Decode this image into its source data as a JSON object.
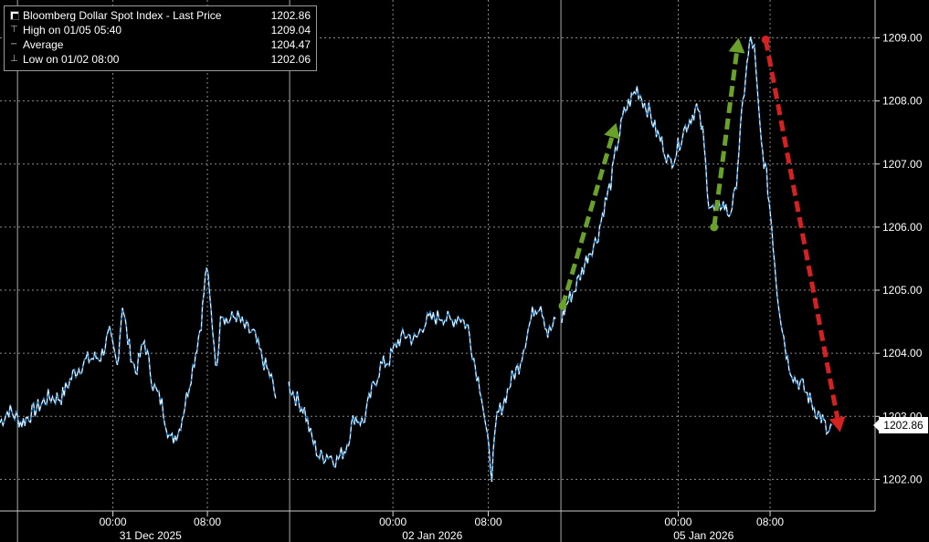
{
  "legend": {
    "title": "Bloomberg Dollar Spot Index - Last Price",
    "last_price": "1202.86",
    "rows": [
      {
        "label": "High on 01/05 05:40",
        "value": "1209.04",
        "icon": "high-marker-icon"
      },
      {
        "label": "Average",
        "value": "1204.47",
        "icon": "average-marker-icon"
      },
      {
        "label": "Low on 01/02 08:00",
        "value": "1202.06",
        "icon": "low-marker-icon"
      }
    ]
  },
  "last_price_tag": "1202.86",
  "chart_data": {
    "type": "line",
    "title": "Bloomberg Dollar Spot Index - Last Price",
    "ylim": [
      1201.5,
      1209.6
    ],
    "y_ticks": [
      {
        "value": 1202,
        "label": "1202.00"
      },
      {
        "value": 1203,
        "label": "1203.00"
      },
      {
        "value": 1204,
        "label": "1204.00"
      },
      {
        "value": 1205,
        "label": "1205.00"
      },
      {
        "value": 1206,
        "label": "1206.00"
      },
      {
        "value": 1207,
        "label": "1207.00"
      },
      {
        "value": 1208,
        "label": "1208.00"
      },
      {
        "value": 1209,
        "label": "1209.00"
      }
    ],
    "x_tick_labels": [
      "00:00",
      "08:00",
      "00:00",
      "08:00",
      "00:00",
      "08:00"
    ],
    "date_labels": [
      "31 Dec 2025",
      "02 Jan 2026",
      "05 Jan 2026"
    ],
    "x_domain": [
      0,
      100
    ],
    "x_tick_positions": [
      12.9,
      23.7,
      44.9,
      55.8,
      77.5,
      88.0
    ],
    "session_separators": [
      2.0,
      33.1,
      64.1
    ],
    "date_label_positions": [
      17.2,
      49.4,
      80.4
    ],
    "colors": {
      "line": "#ffffff",
      "line_accent": "#2a8fd6",
      "grid": "#8c8c8c",
      "up_arrow": "#6aa12a",
      "down_arrow": "#d42222"
    },
    "series": [
      {
        "points": [
          [
            0.0,
            1202.9
          ],
          [
            1.0,
            1203.1
          ],
          [
            2.5,
            1202.9
          ],
          [
            4.0,
            1203.1
          ],
          [
            5.5,
            1203.3
          ],
          [
            7.0,
            1203.3
          ],
          [
            8.5,
            1203.7
          ],
          [
            10.0,
            1203.9
          ],
          [
            11.5,
            1203.95
          ],
          [
            12.5,
            1204.3
          ],
          [
            13.4,
            1203.8
          ],
          [
            14.0,
            1204.8
          ],
          [
            14.6,
            1204.2
          ],
          [
            15.5,
            1203.7
          ],
          [
            16.5,
            1204.2
          ],
          [
            17.5,
            1203.5
          ],
          [
            18.5,
            1203.2
          ],
          [
            19.5,
            1202.6
          ],
          [
            20.5,
            1202.8
          ],
          [
            21.3,
            1203.3
          ],
          [
            22.2,
            1203.9
          ],
          [
            23.0,
            1204.5
          ],
          [
            23.6,
            1205.4
          ],
          [
            24.3,
            1204.4
          ],
          [
            24.8,
            1203.7
          ],
          [
            25.2,
            1204.7
          ],
          [
            26.0,
            1204.5
          ],
          [
            27.0,
            1204.6
          ],
          [
            28.0,
            1204.4
          ],
          [
            29.0,
            1204.3
          ],
          [
            30.0,
            1203.9
          ],
          [
            31.0,
            1203.6
          ],
          [
            31.5,
            1203.3
          ],
          [
            33.0,
            1203.5
          ],
          [
            33.8,
            1203.3
          ],
          [
            34.8,
            1203.1
          ],
          [
            35.5,
            1202.7
          ],
          [
            36.5,
            1202.35
          ],
          [
            37.5,
            1202.4
          ],
          [
            38.5,
            1202.3
          ],
          [
            39.5,
            1202.5
          ],
          [
            40.5,
            1203.0
          ],
          [
            41.5,
            1202.9
          ],
          [
            42.5,
            1203.4
          ],
          [
            43.5,
            1203.8
          ],
          [
            44.5,
            1203.9
          ],
          [
            45.5,
            1204.2
          ],
          [
            46.5,
            1204.3
          ],
          [
            47.5,
            1204.2
          ],
          [
            48.5,
            1204.5
          ],
          [
            49.5,
            1204.55
          ],
          [
            50.5,
            1204.6
          ],
          [
            51.5,
            1204.5
          ],
          [
            52.5,
            1204.6
          ],
          [
            53.5,
            1204.4
          ],
          [
            54.3,
            1203.8
          ],
          [
            55.0,
            1203.4
          ],
          [
            55.7,
            1202.6
          ],
          [
            56.2,
            1202.1
          ],
          [
            56.8,
            1203.0
          ],
          [
            57.5,
            1203.2
          ],
          [
            58.5,
            1203.6
          ],
          [
            59.3,
            1203.8
          ],
          [
            60.2,
            1204.3
          ],
          [
            61.0,
            1204.7
          ],
          [
            61.8,
            1204.8
          ],
          [
            62.6,
            1204.3
          ],
          [
            63.5,
            1204.5
          ],
          [
            64.2,
            1204.55
          ],
          [
            64.8,
            1204.8
          ],
          [
            65.6,
            1205.0
          ],
          [
            66.5,
            1205.3
          ],
          [
            67.3,
            1205.6
          ],
          [
            68.2,
            1205.8
          ],
          [
            69.0,
            1206.3
          ],
          [
            69.8,
            1206.7
          ],
          [
            70.5,
            1207.3
          ],
          [
            71.3,
            1207.8
          ],
          [
            72.0,
            1208.0
          ],
          [
            72.8,
            1208.2
          ],
          [
            73.5,
            1208.0
          ],
          [
            74.3,
            1207.8
          ],
          [
            75.0,
            1207.5
          ],
          [
            75.8,
            1207.3
          ],
          [
            76.5,
            1207.0
          ],
          [
            77.3,
            1207.2
          ],
          [
            78.0,
            1207.5
          ],
          [
            78.8,
            1207.7
          ],
          [
            79.6,
            1207.9
          ],
          [
            80.3,
            1207.5
          ],
          [
            81.0,
            1206.4
          ],
          [
            81.8,
            1206.2
          ],
          [
            82.5,
            1206.4
          ],
          [
            83.3,
            1206.2
          ],
          [
            84.0,
            1206.5
          ],
          [
            84.6,
            1207.5
          ],
          [
            85.2,
            1208.4
          ],
          [
            85.8,
            1209.0
          ],
          [
            86.2,
            1208.8
          ],
          [
            86.6,
            1208.0
          ],
          [
            87.0,
            1207.3
          ],
          [
            87.6,
            1206.8
          ],
          [
            88.2,
            1206.0
          ],
          [
            88.8,
            1205.0
          ],
          [
            89.4,
            1204.4
          ],
          [
            90.0,
            1203.9
          ],
          [
            90.8,
            1203.6
          ],
          [
            91.6,
            1203.5
          ],
          [
            92.4,
            1203.3
          ],
          [
            93.2,
            1203.1
          ],
          [
            94.0,
            1202.95
          ],
          [
            94.6,
            1202.7
          ],
          [
            95.1,
            1202.86
          ]
        ]
      }
    ],
    "annotations": [
      {
        "type": "up_arrow",
        "from": [
          64.3,
          1204.75
        ],
        "to": [
          70.4,
          1207.65
        ]
      },
      {
        "type": "up_arrow",
        "from": [
          81.6,
          1206.0
        ],
        "to": [
          84.4,
          1209.0
        ]
      },
      {
        "type": "down_arrow",
        "from": [
          87.5,
          1208.97
        ],
        "to": [
          96.0,
          1202.75
        ]
      }
    ]
  }
}
